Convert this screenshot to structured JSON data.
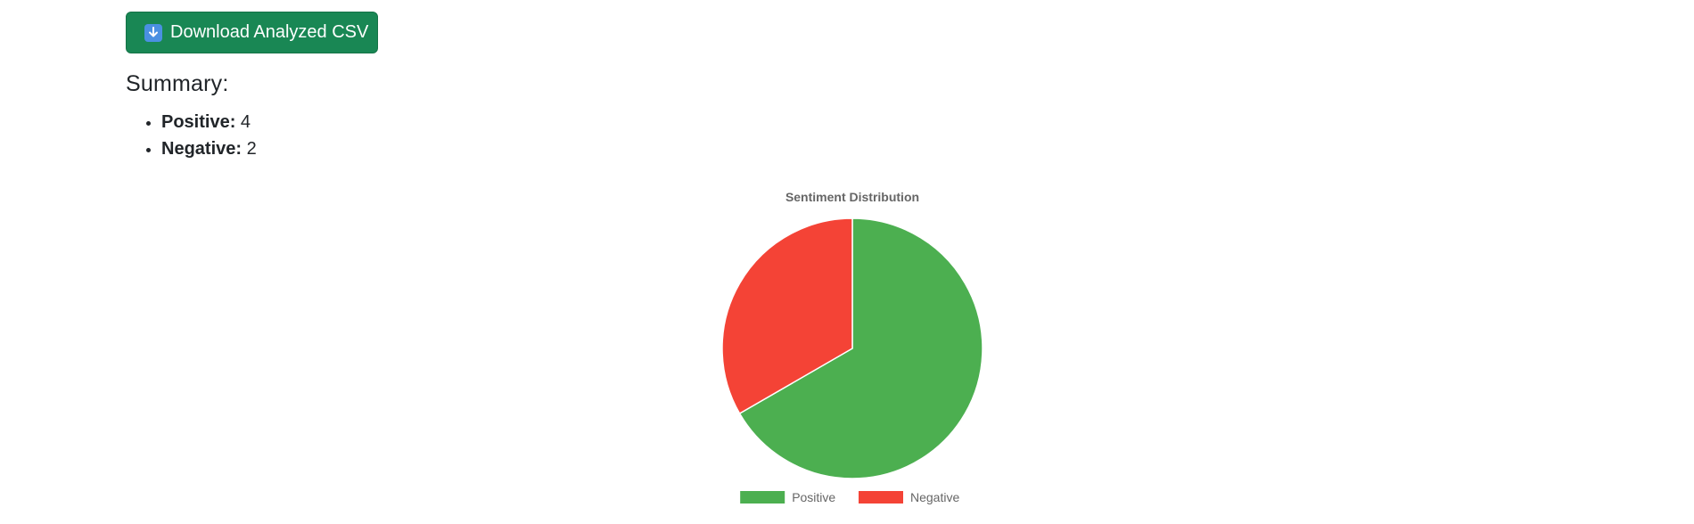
{
  "download_button": {
    "label": "Download Analyzed CSV",
    "icon": "download-arrow-icon",
    "color": "#198754"
  },
  "summary": {
    "title": "Summary:",
    "items": [
      {
        "key": "Positive:",
        "value": "4"
      },
      {
        "key": "Negative:",
        "value": "2"
      }
    ]
  },
  "chart_data": {
    "type": "pie",
    "title": "Sentiment Distribution",
    "categories": [
      "Positive",
      "Negative"
    ],
    "values": [
      4,
      2
    ],
    "colors": [
      "#4caf50",
      "#f44336"
    ],
    "legend": "bottom"
  }
}
